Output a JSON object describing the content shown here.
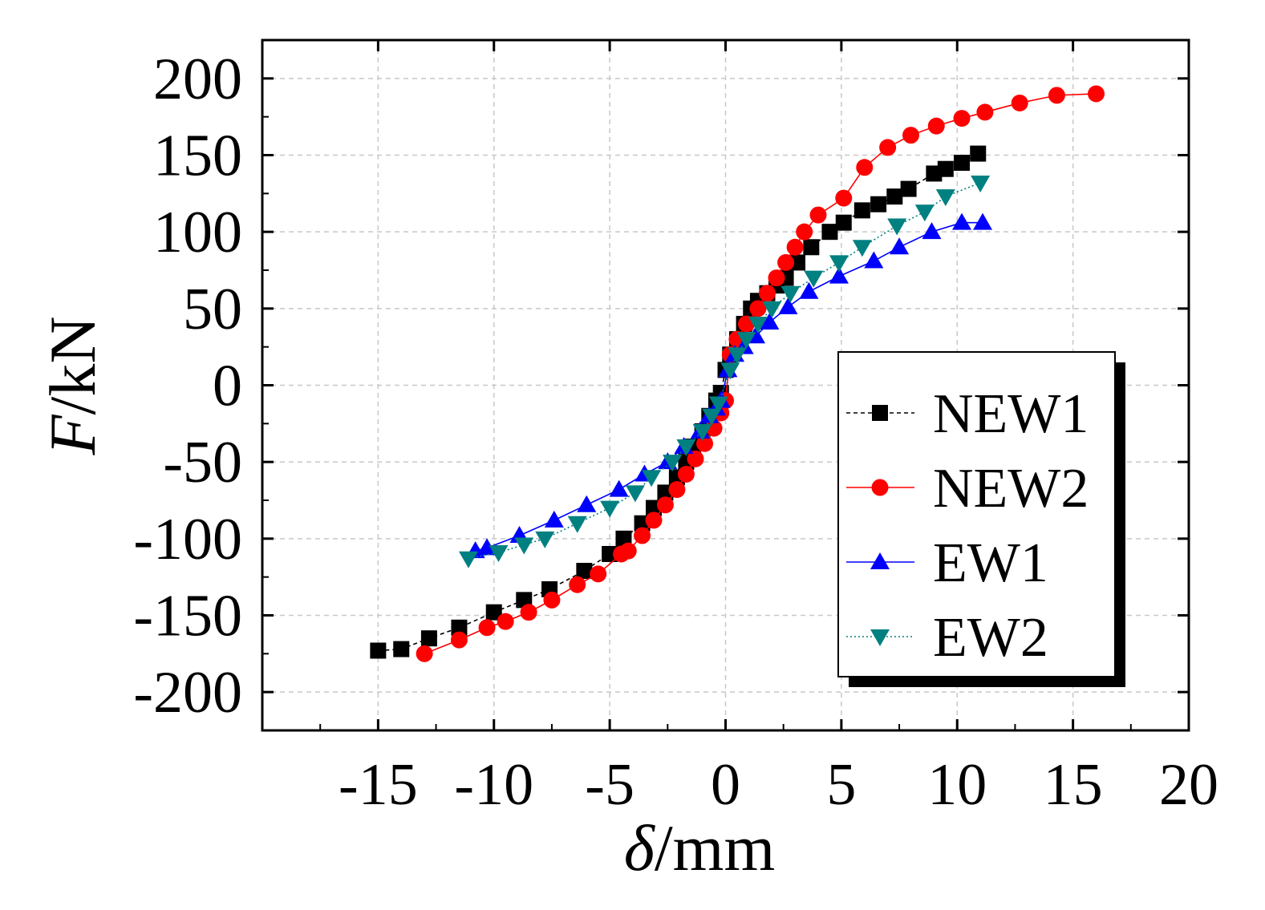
{
  "chart_data": {
    "type": "line",
    "xlabel_symbol": "δ",
    "xlabel_unit": "/mm",
    "ylabel_symbol": "F",
    "ylabel_unit": "/kN",
    "xlim": [
      -20,
      20
    ],
    "ylim": [
      -225,
      225
    ],
    "x_ticks": [
      -15,
      -10,
      -5,
      0,
      5,
      10,
      15,
      20
    ],
    "y_ticks": [
      200,
      150,
      100,
      50,
      0,
      -50,
      -100,
      -150,
      -200
    ],
    "x_tick_labels": [
      "-15",
      "-10",
      "-5",
      "0",
      "5",
      "10",
      "15",
      "20"
    ],
    "y_tick_labels": [
      "200",
      "150",
      "100",
      "50",
      "0",
      "-50",
      "-100",
      "-150",
      "-200"
    ],
    "grid": true,
    "legend_position": "right",
    "series": [
      {
        "name": "NEW1",
        "color": "#000000",
        "marker": "square",
        "line": "dashed",
        "x": [
          -15.0,
          -14.0,
          -12.8,
          -11.5,
          -10.0,
          -8.7,
          -7.6,
          -6.1,
          -5.0,
          -4.4,
          -3.6,
          -3.1,
          -2.6,
          -2.1,
          -1.7,
          -1.4,
          -1.0,
          -0.7,
          -0.4,
          -0.2,
          0.0,
          0.2,
          0.5,
          0.8,
          1.1,
          1.4,
          1.8,
          2.2,
          2.6,
          3.1,
          3.7,
          4.5,
          5.1,
          5.9,
          6.6,
          7.3,
          7.9,
          9.0,
          9.5,
          10.2,
          10.9
        ],
        "y": [
          -173,
          -172,
          -165,
          -158,
          -148,
          -140,
          -133,
          -121,
          -110,
          -100,
          -90,
          -80,
          -70,
          -60,
          -50,
          -40,
          -30,
          -20,
          -10,
          -5,
          10,
          20,
          30,
          40,
          50,
          55,
          60,
          65,
          70,
          80,
          90,
          100,
          106,
          114,
          118,
          123,
          128,
          138,
          141,
          145,
          151
        ]
      },
      {
        "name": "NEW2",
        "color": "#ff0000",
        "marker": "circle",
        "line": "solid",
        "x": [
          -13.0,
          -11.5,
          -10.3,
          -9.5,
          -8.5,
          -7.5,
          -6.4,
          -5.5,
          -4.5,
          -4.2,
          -3.6,
          -3.1,
          -2.6,
          -2.1,
          -1.7,
          -1.3,
          -0.9,
          -0.5,
          -0.2,
          0.0,
          0.2,
          0.5,
          0.9,
          1.4,
          1.8,
          2.2,
          2.6,
          3.0,
          3.4,
          4.0,
          5.1,
          6.0,
          7.0,
          8.0,
          9.1,
          10.2,
          11.2,
          12.7,
          14.3,
          16.0
        ],
        "y": [
          -175,
          -166,
          -158,
          -154,
          -148,
          -140,
          -130,
          -123,
          -110,
          -108,
          -98,
          -88,
          -78,
          -68,
          -58,
          -48,
          -38,
          -28,
          -18,
          -10,
          20,
          30,
          40,
          50,
          60,
          70,
          80,
          90,
          100,
          111,
          122,
          142,
          155,
          163,
          169,
          174,
          178,
          184,
          189,
          190
        ]
      },
      {
        "name": "EW1",
        "color": "#0000ff",
        "marker": "triangle-up",
        "line": "solid",
        "x": [
          -10.8,
          -10.3,
          -8.9,
          -7.4,
          -6.0,
          -4.6,
          -3.5,
          -2.5,
          -1.8,
          -1.1,
          -0.7,
          -0.4,
          -0.2,
          0.1,
          0.4,
          0.8,
          1.3,
          1.9,
          2.7,
          3.6,
          4.9,
          6.4,
          7.5,
          8.9,
          10.2,
          11.1
        ],
        "y": [
          -108,
          -106,
          -98,
          -88,
          -78,
          -68,
          -58,
          -50,
          -40,
          -30,
          -20,
          -15,
          -10,
          10,
          20,
          25,
          32,
          41,
          51,
          61,
          71,
          81,
          90,
          100,
          106,
          106
        ]
      },
      {
        "name": "EW2",
        "color": "#008080",
        "marker": "triangle-down",
        "line": "dotted",
        "x": [
          -11.1,
          -9.8,
          -8.7,
          -7.8,
          -6.4,
          -5.0,
          -3.9,
          -3.2,
          -2.3,
          -1.7,
          -1.0,
          -0.6,
          -0.3,
          0.2,
          0.5,
          0.9,
          1.4,
          2.0,
          2.8,
          3.8,
          4.9,
          5.9,
          7.4,
          8.6,
          9.5,
          11.0
        ],
        "y": [
          -113,
          -109,
          -104,
          -100,
          -90,
          -80,
          -70,
          -60,
          -50,
          -40,
          -30,
          -20,
          -12,
          10,
          20,
          30,
          40,
          50,
          60,
          70,
          80,
          90,
          104,
          113,
          123,
          132
        ]
      }
    ]
  }
}
